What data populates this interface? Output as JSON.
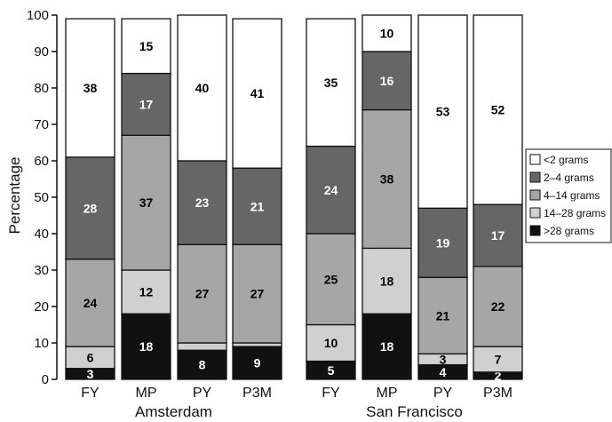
{
  "chart_data": {
    "type": "bar",
    "stacked": true,
    "ylabel": "Percentage",
    "ylim": [
      0,
      100
    ],
    "yticks": [
      0,
      10,
      20,
      30,
      40,
      50,
      60,
      70,
      80,
      90,
      100
    ],
    "groups": [
      {
        "name": "Amsterdam",
        "categories": [
          "FY",
          "MP",
          "PY",
          "P3M"
        ]
      },
      {
        "name": "San Francisco",
        "categories": [
          "FY",
          "MP",
          "PY",
          "P3M"
        ]
      }
    ],
    "series": [
      {
        "name": ">28 grams",
        "color": "#111111",
        "label_color": "#ffffff",
        "values": [
          3,
          18,
          8,
          9,
          5,
          18,
          4,
          2
        ]
      },
      {
        "name": "14–28 grams",
        "color": "#d0d0d0",
        "label_color": "#000000",
        "values": [
          6,
          12,
          2,
          1,
          10,
          18,
          3,
          7
        ]
      },
      {
        "name": "4–14 grams",
        "color": "#a6a6a6",
        "label_color": "#000000",
        "values": [
          24,
          37,
          27,
          27,
          25,
          38,
          21,
          22
        ]
      },
      {
        "name": "2–4 grams",
        "color": "#666666",
        "label_color": "#ffffff",
        "values": [
          28,
          17,
          23,
          21,
          24,
          16,
          19,
          17
        ]
      },
      {
        "name": "<2 grams",
        "color": "#ffffff",
        "label_color": "#000000",
        "values": [
          38,
          15,
          40,
          41,
          35,
          10,
          53,
          52
        ]
      }
    ],
    "legend_order": [
      "<2 grams",
      "2–4 grams",
      "4–14 grams",
      "14–28 grams",
      ">28 grams"
    ],
    "legend_position": "right"
  }
}
